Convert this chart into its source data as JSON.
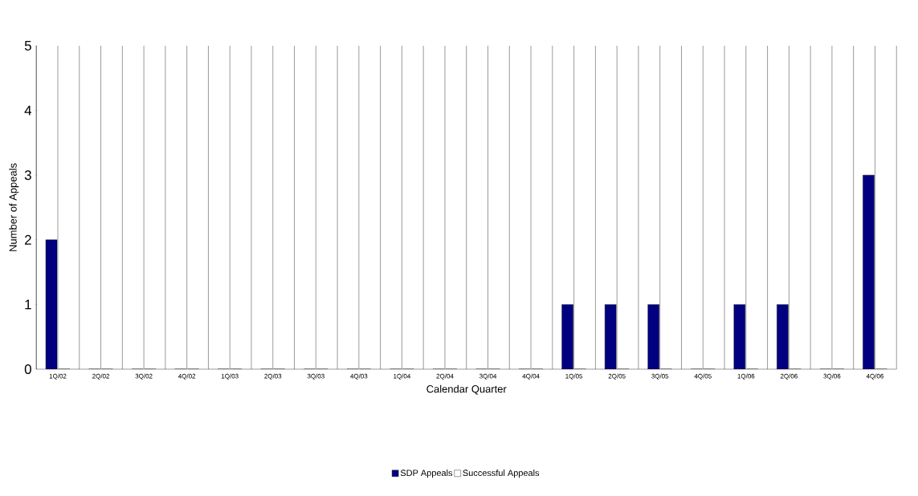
{
  "chart_data": {
    "type": "bar",
    "xlabel": "Calendar Quarter",
    "ylabel": "Number of Appeals",
    "categories": [
      "1Q/02",
      "2Q/02",
      "3Q/02",
      "4Q/02",
      "1Q/03",
      "2Q/03",
      "3Q/03",
      "4Q/03",
      "1Q/04",
      "2Q/04",
      "3Q/04",
      "4Q/04",
      "1Q/05",
      "2Q/05",
      "3Q/05",
      "4Q/05",
      "1Q/06",
      "2Q/06",
      "3Q/06",
      "4Q/06"
    ],
    "series": [
      {
        "name": "SDP Appeals",
        "color": "#000080",
        "values": [
          2,
          0,
          0,
          0,
          0,
          0,
          0,
          0,
          0,
          0,
          0,
          0,
          1,
          1,
          1,
          0,
          1,
          1,
          0,
          3
        ]
      },
      {
        "name": "Successful Appeals",
        "color": "#ffffff",
        "values": [
          0,
          0,
          0,
          0,
          0,
          0,
          0,
          0,
          0,
          0,
          0,
          0,
          0,
          0,
          0,
          0,
          0,
          0,
          0,
          0
        ]
      }
    ],
    "ylim": [
      0,
      5
    ],
    "yticks": [
      0,
      1,
      2,
      3,
      4,
      5
    ],
    "grid": "x",
    "legend": "bottom"
  }
}
